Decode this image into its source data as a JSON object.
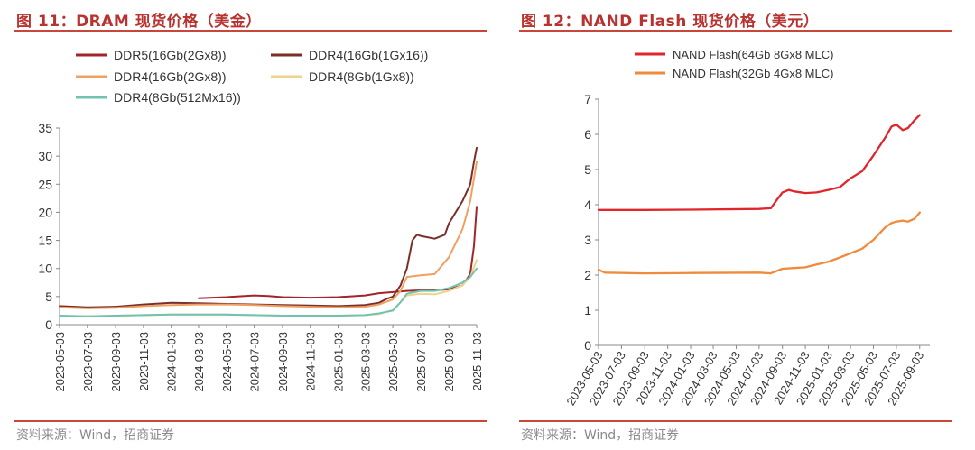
{
  "left_chart": {
    "figure_title": "图 11：DRAM 现货价格（美金）",
    "source": "资料来源：Wind，招商证券",
    "colors": {
      "DDR5(16Gb(2Gx8))": "#a3242b",
      "DDR4(16Gb(1Gx16))": "#7a2e2a",
      "DDR4(16Gb(2Gx8))": "#f0a060",
      "DDR4(8Gb(1Gx8))": "#ecd48c",
      "DDR4(8Gb(512Mx16))": "#72c2b0"
    }
  },
  "right_chart": {
    "figure_title": "图 12：NAND Flash 现货价格（美元）",
    "source": "资料来源：Wind，招商证券",
    "colors": {
      "NAND Flash(64Gb 8Gx8 MLC)": "#e0262b",
      "NAND Flash(32Gb 4Gx8 MLC)": "#f08a3c"
    }
  },
  "chart_data": [
    {
      "type": "line",
      "title": "",
      "xlabel": "",
      "ylabel": "",
      "ylim": [
        0,
        35
      ],
      "yticks": [
        0,
        5,
        10,
        15,
        20,
        25,
        30,
        35
      ],
      "x_tick_labels": [
        "2023-05-03",
        "2023-07-03",
        "2023-09-03",
        "2023-11-03",
        "2024-01-03",
        "2024-03-03",
        "2024-05-03",
        "2024-07-03",
        "2024-09-03",
        "2024-11-03",
        "2025-01-03",
        "2025-03-03",
        "2025-05-03",
        "2025-07-03",
        "2025-09-03",
        "2025-11-03"
      ],
      "grid": false,
      "legend": "top-left",
      "series": [
        {
          "name": "DDR5(16Gb(2Gx8))",
          "points": [
            [
              "2024-03-03",
              4.7
            ],
            [
              "2024-05-03",
              4.9
            ],
            [
              "2024-07-03",
              5.2
            ],
            [
              "2024-08-03",
              5.1
            ],
            [
              "2024-09-03",
              4.9
            ],
            [
              "2024-11-03",
              4.8
            ],
            [
              "2025-01-03",
              4.9
            ],
            [
              "2025-03-03",
              5.2
            ],
            [
              "2025-04-03",
              5.6
            ],
            [
              "2025-05-03",
              5.8
            ],
            [
              "2025-06-03",
              6.0
            ],
            [
              "2025-07-03",
              6.1
            ],
            [
              "2025-08-03",
              6.1
            ],
            [
              "2025-09-03",
              6.3
            ],
            [
              "2025-10-03",
              7.0
            ],
            [
              "2025-10-20",
              9.0
            ],
            [
              "2025-10-28",
              14.0
            ],
            [
              "2025-11-03",
              21.0
            ]
          ]
        },
        {
          "name": "DDR4(16Gb(1Gx16))",
          "points": [
            [
              "2023-05-03",
              3.3
            ],
            [
              "2023-07-03",
              3.1
            ],
            [
              "2023-09-03",
              3.2
            ],
            [
              "2023-11-03",
              3.6
            ],
            [
              "2024-01-03",
              3.9
            ],
            [
              "2024-03-03",
              3.8
            ],
            [
              "2024-05-03",
              3.7
            ],
            [
              "2024-07-03",
              3.6
            ],
            [
              "2024-09-03",
              3.5
            ],
            [
              "2024-11-03",
              3.4
            ],
            [
              "2025-01-03",
              3.3
            ],
            [
              "2025-03-03",
              3.5
            ],
            [
              "2025-04-03",
              3.9
            ],
            [
              "2025-04-20",
              4.6
            ],
            [
              "2025-05-03",
              5.0
            ],
            [
              "2025-05-20",
              7.0
            ],
            [
              "2025-06-03",
              10.0
            ],
            [
              "2025-06-15",
              15.0
            ],
            [
              "2025-06-25",
              16.0
            ],
            [
              "2025-07-03",
              15.8
            ],
            [
              "2025-08-03",
              15.3
            ],
            [
              "2025-08-25",
              16.0
            ],
            [
              "2025-09-03",
              18.0
            ],
            [
              "2025-10-03",
              22.0
            ],
            [
              "2025-10-20",
              25.0
            ],
            [
              "2025-10-28",
              29.0
            ],
            [
              "2025-11-03",
              31.5
            ]
          ]
        },
        {
          "name": "DDR4(16Gb(2Gx8))",
          "points": [
            [
              "2023-05-03",
              3.1
            ],
            [
              "2023-07-03",
              2.9
            ],
            [
              "2023-09-03",
              3.0
            ],
            [
              "2023-11-03",
              3.3
            ],
            [
              "2024-01-03",
              3.5
            ],
            [
              "2024-03-03",
              3.6
            ],
            [
              "2024-05-03",
              3.6
            ],
            [
              "2024-07-03",
              3.5
            ],
            [
              "2024-09-03",
              3.3
            ],
            [
              "2024-11-03",
              3.2
            ],
            [
              "2025-01-03",
              3.1
            ],
            [
              "2025-03-03",
              3.2
            ],
            [
              "2025-04-03",
              3.6
            ],
            [
              "2025-05-03",
              4.5
            ],
            [
              "2025-05-20",
              6.0
            ],
            [
              "2025-06-03",
              8.5
            ],
            [
              "2025-07-03",
              8.8
            ],
            [
              "2025-08-03",
              9.0
            ],
            [
              "2025-09-03",
              12.0
            ],
            [
              "2025-10-03",
              17.0
            ],
            [
              "2025-10-20",
              22.0
            ],
            [
              "2025-11-03",
              29.0
            ]
          ]
        },
        {
          "name": "DDR4(8Gb(1Gx8))",
          "points": [
            [
              "2023-05-03",
              1.6
            ],
            [
              "2023-07-03",
              1.5
            ],
            [
              "2023-09-03",
              1.6
            ],
            [
              "2023-11-03",
              1.7
            ],
            [
              "2024-01-03",
              1.8
            ],
            [
              "2024-03-03",
              1.8
            ],
            [
              "2024-05-03",
              1.8
            ],
            [
              "2024-07-03",
              1.7
            ],
            [
              "2024-09-03",
              1.6
            ],
            [
              "2024-11-03",
              1.6
            ],
            [
              "2025-01-03",
              1.6
            ],
            [
              "2025-03-03",
              1.7
            ],
            [
              "2025-04-03",
              1.9
            ],
            [
              "2025-05-03",
              2.6
            ],
            [
              "2025-05-20",
              4.0
            ],
            [
              "2025-06-03",
              5.2
            ],
            [
              "2025-07-03",
              5.5
            ],
            [
              "2025-08-03",
              5.4
            ],
            [
              "2025-09-03",
              6.0
            ],
            [
              "2025-10-03",
              7.0
            ],
            [
              "2025-10-20",
              8.5
            ],
            [
              "2025-11-03",
              11.5
            ]
          ]
        },
        {
          "name": "DDR4(8Gb(512Mx16))",
          "points": [
            [
              "2023-05-03",
              1.6
            ],
            [
              "2023-07-03",
              1.5
            ],
            [
              "2023-09-03",
              1.6
            ],
            [
              "2023-11-03",
              1.7
            ],
            [
              "2024-01-03",
              1.8
            ],
            [
              "2024-03-03",
              1.8
            ],
            [
              "2024-05-03",
              1.8
            ],
            [
              "2024-07-03",
              1.7
            ],
            [
              "2024-09-03",
              1.6
            ],
            [
              "2024-11-03",
              1.6
            ],
            [
              "2025-01-03",
              1.6
            ],
            [
              "2025-03-03",
              1.7
            ],
            [
              "2025-04-03",
              2.0
            ],
            [
              "2025-05-03",
              2.5
            ],
            [
              "2025-05-20",
              4.0
            ],
            [
              "2025-06-03",
              5.5
            ],
            [
              "2025-07-03",
              6.0
            ],
            [
              "2025-08-03",
              6.0
            ],
            [
              "2025-09-03",
              6.5
            ],
            [
              "2025-10-03",
              7.5
            ],
            [
              "2025-10-20",
              8.5
            ],
            [
              "2025-11-03",
              10.0
            ]
          ]
        }
      ]
    },
    {
      "type": "line",
      "title": "",
      "xlabel": "",
      "ylabel": "",
      "ylim": [
        0,
        7
      ],
      "yticks": [
        0,
        1,
        2,
        3,
        4,
        5,
        6,
        7
      ],
      "x_tick_labels": [
        "2023-05-03",
        "2023-07-03",
        "2023-09-03",
        "2023-11-03",
        "2024-01-03",
        "2024-03-03",
        "2024-05-03",
        "2024-07-03",
        "2024-09-03",
        "2024-11-03",
        "2025-01-03",
        "2025-03-03",
        "2025-05-03",
        "2025-07-03",
        "2025-09-03"
      ],
      "grid": false,
      "legend": "top",
      "series": [
        {
          "name": "NAND Flash(64Gb 8Gx8 MLC)",
          "points": [
            [
              "2023-05-03",
              3.85
            ],
            [
              "2023-09-03",
              3.85
            ],
            [
              "2024-01-03",
              3.86
            ],
            [
              "2024-07-03",
              3.88
            ],
            [
              "2024-08-03",
              3.9
            ],
            [
              "2024-08-20",
              4.15
            ],
            [
              "2024-09-03",
              4.35
            ],
            [
              "2024-09-20",
              4.42
            ],
            [
              "2024-10-03",
              4.38
            ],
            [
              "2024-11-03",
              4.33
            ],
            [
              "2024-12-03",
              4.35
            ],
            [
              "2025-01-03",
              4.42
            ],
            [
              "2025-02-03",
              4.5
            ],
            [
              "2025-03-03",
              4.75
            ],
            [
              "2025-04-03",
              4.95
            ],
            [
              "2025-05-03",
              5.4
            ],
            [
              "2025-06-03",
              5.9
            ],
            [
              "2025-06-20",
              6.22
            ],
            [
              "2025-07-03",
              6.28
            ],
            [
              "2025-07-20",
              6.12
            ],
            [
              "2025-08-03",
              6.18
            ],
            [
              "2025-08-20",
              6.4
            ],
            [
              "2025-09-03",
              6.55
            ]
          ]
        },
        {
          "name": "NAND Flash(32Gb 4Gx8 MLC)",
          "points": [
            [
              "2023-05-03",
              2.15
            ],
            [
              "2023-05-20",
              2.07
            ],
            [
              "2023-09-03",
              2.05
            ],
            [
              "2024-01-03",
              2.06
            ],
            [
              "2024-07-03",
              2.07
            ],
            [
              "2024-08-03",
              2.05
            ],
            [
              "2024-09-03",
              2.18
            ],
            [
              "2024-10-03",
              2.2
            ],
            [
              "2024-11-03",
              2.22
            ],
            [
              "2024-12-03",
              2.3
            ],
            [
              "2025-01-03",
              2.38
            ],
            [
              "2025-02-03",
              2.5
            ],
            [
              "2025-03-03",
              2.62
            ],
            [
              "2025-04-03",
              2.75
            ],
            [
              "2025-05-03",
              3.0
            ],
            [
              "2025-06-03",
              3.35
            ],
            [
              "2025-06-20",
              3.48
            ],
            [
              "2025-07-03",
              3.52
            ],
            [
              "2025-07-20",
              3.55
            ],
            [
              "2025-08-03",
              3.52
            ],
            [
              "2025-08-20",
              3.6
            ],
            [
              "2025-09-03",
              3.78
            ]
          ]
        }
      ]
    }
  ]
}
